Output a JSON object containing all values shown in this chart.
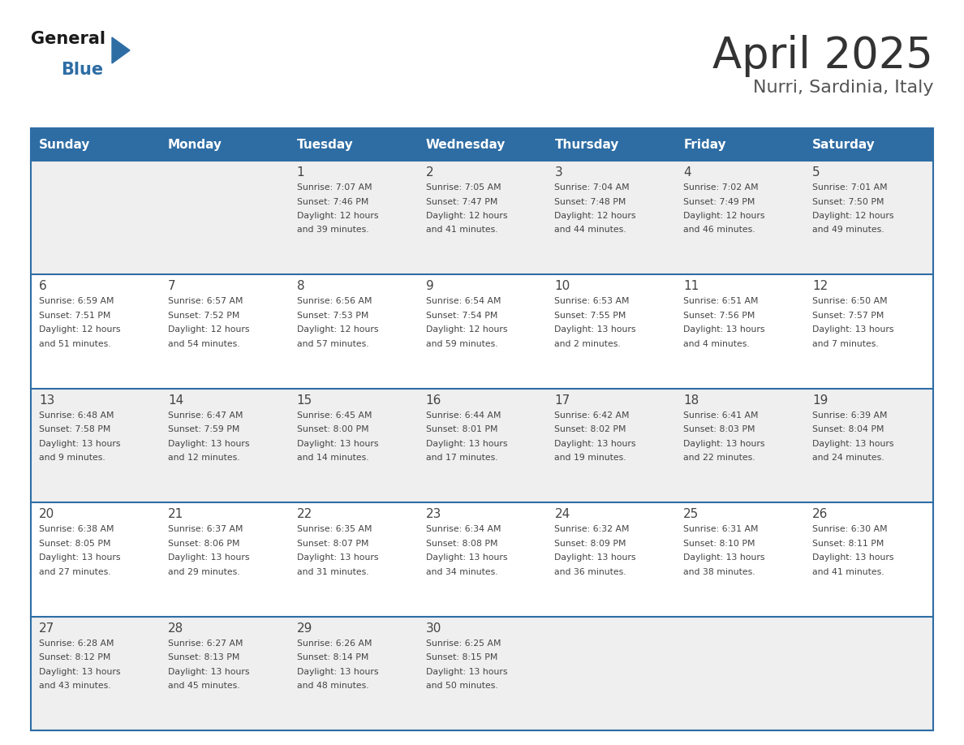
{
  "title": "April 2025",
  "subtitle": "Nurri, Sardinia, Italy",
  "header_bg": "#2E6DA4",
  "header_text_color": "#FFFFFF",
  "days_of_week": [
    "Sunday",
    "Monday",
    "Tuesday",
    "Wednesday",
    "Thursday",
    "Friday",
    "Saturday"
  ],
  "row_bg_odd": "#EFEFEF",
  "row_bg_even": "#FFFFFF",
  "cell_text_color": "#444444",
  "divider_color": "#2E6DA4",
  "weeks": [
    {
      "days": [
        {
          "date": "",
          "sunrise": "",
          "sunset": "",
          "daylight": ""
        },
        {
          "date": "",
          "sunrise": "",
          "sunset": "",
          "daylight": ""
        },
        {
          "date": "1",
          "sunrise": "7:07 AM",
          "sunset": "7:46 PM",
          "daylight": "12 hours\nand 39 minutes."
        },
        {
          "date": "2",
          "sunrise": "7:05 AM",
          "sunset": "7:47 PM",
          "daylight": "12 hours\nand 41 minutes."
        },
        {
          "date": "3",
          "sunrise": "7:04 AM",
          "sunset": "7:48 PM",
          "daylight": "12 hours\nand 44 minutes."
        },
        {
          "date": "4",
          "sunrise": "7:02 AM",
          "sunset": "7:49 PM",
          "daylight": "12 hours\nand 46 minutes."
        },
        {
          "date": "5",
          "sunrise": "7:01 AM",
          "sunset": "7:50 PM",
          "daylight": "12 hours\nand 49 minutes."
        }
      ]
    },
    {
      "days": [
        {
          "date": "6",
          "sunrise": "6:59 AM",
          "sunset": "7:51 PM",
          "daylight": "12 hours\nand 51 minutes."
        },
        {
          "date": "7",
          "sunrise": "6:57 AM",
          "sunset": "7:52 PM",
          "daylight": "12 hours\nand 54 minutes."
        },
        {
          "date": "8",
          "sunrise": "6:56 AM",
          "sunset": "7:53 PM",
          "daylight": "12 hours\nand 57 minutes."
        },
        {
          "date": "9",
          "sunrise": "6:54 AM",
          "sunset": "7:54 PM",
          "daylight": "12 hours\nand 59 minutes."
        },
        {
          "date": "10",
          "sunrise": "6:53 AM",
          "sunset": "7:55 PM",
          "daylight": "13 hours\nand 2 minutes."
        },
        {
          "date": "11",
          "sunrise": "6:51 AM",
          "sunset": "7:56 PM",
          "daylight": "13 hours\nand 4 minutes."
        },
        {
          "date": "12",
          "sunrise": "6:50 AM",
          "sunset": "7:57 PM",
          "daylight": "13 hours\nand 7 minutes."
        }
      ]
    },
    {
      "days": [
        {
          "date": "13",
          "sunrise": "6:48 AM",
          "sunset": "7:58 PM",
          "daylight": "13 hours\nand 9 minutes."
        },
        {
          "date": "14",
          "sunrise": "6:47 AM",
          "sunset": "7:59 PM",
          "daylight": "13 hours\nand 12 minutes."
        },
        {
          "date": "15",
          "sunrise": "6:45 AM",
          "sunset": "8:00 PM",
          "daylight": "13 hours\nand 14 minutes."
        },
        {
          "date": "16",
          "sunrise": "6:44 AM",
          "sunset": "8:01 PM",
          "daylight": "13 hours\nand 17 minutes."
        },
        {
          "date": "17",
          "sunrise": "6:42 AM",
          "sunset": "8:02 PM",
          "daylight": "13 hours\nand 19 minutes."
        },
        {
          "date": "18",
          "sunrise": "6:41 AM",
          "sunset": "8:03 PM",
          "daylight": "13 hours\nand 22 minutes."
        },
        {
          "date": "19",
          "sunrise": "6:39 AM",
          "sunset": "8:04 PM",
          "daylight": "13 hours\nand 24 minutes."
        }
      ]
    },
    {
      "days": [
        {
          "date": "20",
          "sunrise": "6:38 AM",
          "sunset": "8:05 PM",
          "daylight": "13 hours\nand 27 minutes."
        },
        {
          "date": "21",
          "sunrise": "6:37 AM",
          "sunset": "8:06 PM",
          "daylight": "13 hours\nand 29 minutes."
        },
        {
          "date": "22",
          "sunrise": "6:35 AM",
          "sunset": "8:07 PM",
          "daylight": "13 hours\nand 31 minutes."
        },
        {
          "date": "23",
          "sunrise": "6:34 AM",
          "sunset": "8:08 PM",
          "daylight": "13 hours\nand 34 minutes."
        },
        {
          "date": "24",
          "sunrise": "6:32 AM",
          "sunset": "8:09 PM",
          "daylight": "13 hours\nand 36 minutes."
        },
        {
          "date": "25",
          "sunrise": "6:31 AM",
          "sunset": "8:10 PM",
          "daylight": "13 hours\nand 38 minutes."
        },
        {
          "date": "26",
          "sunrise": "6:30 AM",
          "sunset": "8:11 PM",
          "daylight": "13 hours\nand 41 minutes."
        }
      ]
    },
    {
      "days": [
        {
          "date": "27",
          "sunrise": "6:28 AM",
          "sunset": "8:12 PM",
          "daylight": "13 hours\nand 43 minutes."
        },
        {
          "date": "28",
          "sunrise": "6:27 AM",
          "sunset": "8:13 PM",
          "daylight": "13 hours\nand 45 minutes."
        },
        {
          "date": "29",
          "sunrise": "6:26 AM",
          "sunset": "8:14 PM",
          "daylight": "13 hours\nand 48 minutes."
        },
        {
          "date": "30",
          "sunrise": "6:25 AM",
          "sunset": "8:15 PM",
          "daylight": "13 hours\nand 50 minutes."
        },
        {
          "date": "",
          "sunrise": "",
          "sunset": "",
          "daylight": ""
        },
        {
          "date": "",
          "sunrise": "",
          "sunset": "",
          "daylight": ""
        },
        {
          "date": "",
          "sunrise": "",
          "sunset": "",
          "daylight": ""
        }
      ]
    }
  ]
}
